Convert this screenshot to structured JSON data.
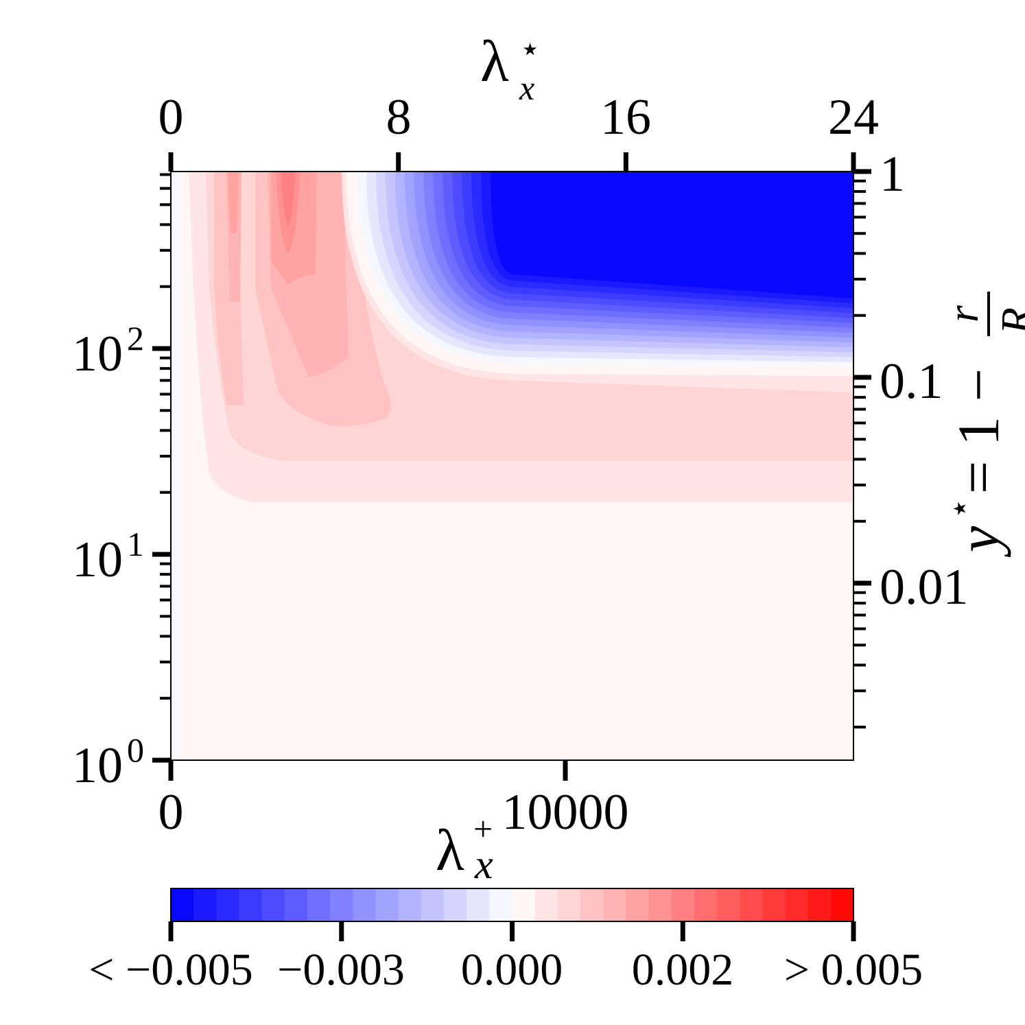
{
  "chart_data": {
    "type": "heatmap",
    "subtype": "filled-contour",
    "xlabel_bottom": {
      "base": "λ",
      "sub": "x",
      "sup": "+"
    },
    "xlabel_top": {
      "base": "λ",
      "sub": "x",
      "sup": "⋆"
    },
    "ylabel_right": {
      "lhs": "y",
      "sup": "⋆",
      "eq": "= 1 −",
      "num": "r",
      "den": "R"
    },
    "x_bottom": {
      "range": [
        0,
        17300
      ],
      "ticks": [
        0,
        10000
      ],
      "tick_labels": [
        "0",
        "10000"
      ],
      "scale": "linear"
    },
    "x_top": {
      "range": [
        0,
        24
      ],
      "ticks": [
        0,
        8,
        16,
        24
      ],
      "tick_labels": [
        "0",
        "8",
        "16",
        "24"
      ],
      "scale": "linear"
    },
    "y_left": {
      "range": [
        1,
        720
      ],
      "scale": "log",
      "ticks": [
        1,
        10,
        100
      ],
      "tick_labels": [
        {
          "base": "10",
          "exp": "0"
        },
        {
          "base": "10",
          "exp": "1"
        },
        {
          "base": "10",
          "exp": "2"
        }
      ]
    },
    "y_right": {
      "range": [
        0.00139,
        1
      ],
      "scale": "log",
      "ticks": [
        1,
        0.1,
        0.01
      ],
      "tick_labels": [
        "1",
        "0.1",
        "0.01"
      ]
    },
    "colorbar": {
      "colormap": "bwr",
      "range": [
        -0.005,
        0.005
      ],
      "n_levels": 30,
      "extend": "both",
      "ticks": [
        -0.005,
        -0.003,
        0.0,
        0.002,
        0.005
      ],
      "tick_level_index": [
        0,
        7.5,
        15,
        22.5,
        30
      ],
      "tick_labels": [
        "< −0.005",
        "−0.003",
        "0.000",
        "0.002",
        "> 0.005"
      ]
    },
    "features": {
      "positive_peak": {
        "lambda_x_plus": 3000,
        "y_plus": 500,
        "approx_value": 0.003
      },
      "negative_region": {
        "lambda_x_plus_min": 8000,
        "y_plus_min": 200,
        "approx_value": -0.005
      }
    }
  }
}
